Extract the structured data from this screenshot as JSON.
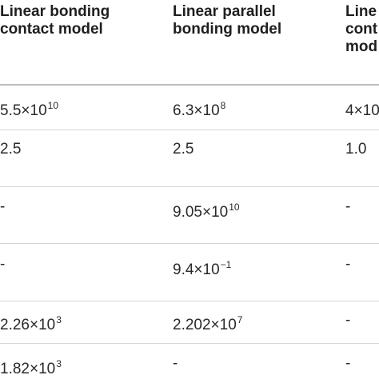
{
  "table": {
    "headers": [
      "Linear bonding\ncontact model",
      "Linear parallel\nbonding model",
      "Line\ncont\nmod"
    ],
    "rows": [
      [
        {
          "base": "5.5×10",
          "exp": "10"
        },
        {
          "base": "6.3×10",
          "exp": "8"
        },
        {
          "base": "4×10",
          "exp": ""
        }
      ],
      [
        {
          "base": "2.5",
          "exp": ""
        },
        {
          "base": "2.5",
          "exp": ""
        },
        {
          "base": "1.0",
          "exp": ""
        }
      ],
      [
        {
          "base": "-",
          "exp": ""
        },
        {
          "base": "9.05×10",
          "exp": "10"
        },
        {
          "base": "-",
          "exp": ""
        }
      ],
      [
        {
          "base": "-",
          "exp": ""
        },
        {
          "base": "9.4×10",
          "exp": "−1"
        },
        {
          "base": "-",
          "exp": ""
        }
      ],
      [
        {
          "base": "2.26×10",
          "exp": "3"
        },
        {
          "base": "2.202×10",
          "exp": "7"
        },
        {
          "base": "-",
          "exp": ""
        }
      ],
      [
        {
          "base": "1.82×10",
          "exp": "3"
        },
        {
          "base": "-",
          "exp": ""
        },
        {
          "base": "-",
          "exp": ""
        }
      ]
    ]
  }
}
